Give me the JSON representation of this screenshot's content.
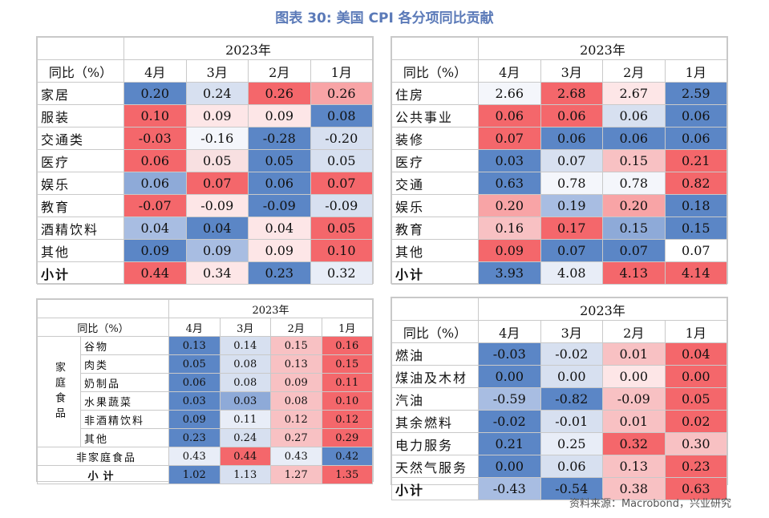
{
  "title": "图表 30: 美国 CPI 各分项同比贡献",
  "source": "资料来源：Macrobond，兴业研究",
  "chart_data": [
    {
      "type": "table",
      "year": "2023年",
      "row_header": "同比（%）",
      "months": [
        "4月",
        "3月",
        "2月",
        "1月"
      ],
      "rows": [
        {
          "label": "家居",
          "values": [
            "0.20",
            "0.24",
            "0.26",
            "0.26"
          ],
          "colors": [
            "#5b86c6",
            "#d7e0f0",
            "#f4676b",
            "#f8a4a6"
          ]
        },
        {
          "label": "服装",
          "values": [
            "0.10",
            "0.09",
            "0.09",
            "0.08"
          ],
          "colors": [
            "#f4676b",
            "#fde6e7",
            "#fde6e7",
            "#5b86c6"
          ]
        },
        {
          "label": "交通类",
          "values": [
            "-0.03",
            "-0.16",
            "-0.28",
            "-0.20"
          ],
          "colors": [
            "#f4676b",
            "#f4f6fb",
            "#5b86c6",
            "#d7e0f0"
          ]
        },
        {
          "label": "医疗",
          "values": [
            "0.06",
            "0.05",
            "0.05",
            "0.05"
          ],
          "colors": [
            "#f4676b",
            "#f8e0e1",
            "#5b86c6",
            "#d7e0f0"
          ]
        },
        {
          "label": "娱乐",
          "values": [
            "0.06",
            "0.07",
            "0.06",
            "0.07"
          ],
          "colors": [
            "#8eaad8",
            "#f4676b",
            "#5b86c6",
            "#f4676b"
          ]
        },
        {
          "label": "教育",
          "values": [
            "-0.07",
            "-0.09",
            "-0.09",
            "-0.09"
          ],
          "colors": [
            "#f4676b",
            "#fde6e7",
            "#5b86c6",
            "#d7e0f0"
          ]
        },
        {
          "label": "酒精饮料",
          "values": [
            "0.04",
            "0.04",
            "0.04",
            "0.05"
          ],
          "colors": [
            "#a8bde2",
            "#5b86c6",
            "#fde6e7",
            "#f4676b"
          ]
        },
        {
          "label": "其他",
          "values": [
            "0.09",
            "0.09",
            "0.09",
            "0.10"
          ],
          "colors": [
            "#5b86c6",
            "#a8bde2",
            "#fde6e7",
            "#f4676b"
          ]
        },
        {
          "label": "小计",
          "bold": true,
          "values": [
            "0.44",
            "0.34",
            "0.23",
            "0.32"
          ],
          "colors": [
            "#f4676b",
            "#fde6e7",
            "#5b86c6",
            "#e8edf7"
          ]
        }
      ]
    },
    {
      "type": "table",
      "year": "2023年",
      "row_header": "同比（%）",
      "months": [
        "4月",
        "3月",
        "2月",
        "1月"
      ],
      "rows": [
        {
          "label": "住房",
          "values": [
            "2.66",
            "2.68",
            "2.67",
            "2.59"
          ],
          "colors": [
            "#f4f6fb",
            "#f4676b",
            "#fde6e7",
            "#5b86c6"
          ]
        },
        {
          "label": "公共事业",
          "values": [
            "0.06",
            "0.06",
            "0.06",
            "0.06"
          ],
          "colors": [
            "#f4676b",
            "#f4676b",
            "#d7e0f0",
            "#5b86c6"
          ]
        },
        {
          "label": "装修",
          "values": [
            "0.07",
            "0.06",
            "0.06",
            "0.06"
          ],
          "colors": [
            "#f4676b",
            "#5b86c6",
            "#5b86c6",
            "#5b86c6"
          ]
        },
        {
          "label": "医疗",
          "values": [
            "0.03",
            "0.07",
            "0.15",
            "0.21"
          ],
          "colors": [
            "#5b86c6",
            "#d7e0f0",
            "#f8c1c3",
            "#f4676b"
          ]
        },
        {
          "label": "交通",
          "values": [
            "0.63",
            "0.78",
            "0.78",
            "0.82"
          ],
          "colors": [
            "#5b86c6",
            "#f4f6fb",
            "#f4f6fb",
            "#f4676b"
          ]
        },
        {
          "label": "娱乐",
          "values": [
            "0.20",
            "0.19",
            "0.20",
            "0.18"
          ],
          "colors": [
            "#f8a4a6",
            "#a8bde2",
            "#f8a4a6",
            "#5b86c6"
          ]
        },
        {
          "label": "教育",
          "values": [
            "0.16",
            "0.17",
            "0.15",
            "0.15"
          ],
          "colors": [
            "#f8c1c3",
            "#f4676b",
            "#8eaad8",
            "#5b86c6"
          ]
        },
        {
          "label": "其他",
          "values": [
            "0.09",
            "0.07",
            "0.07",
            "0.07"
          ],
          "colors": [
            "#f4676b",
            "#5b86c6",
            "#5b86c6",
            "#ffffff"
          ]
        },
        {
          "label": "小计",
          "bold": true,
          "values": [
            "3.93",
            "4.08",
            "4.13",
            "4.14"
          ],
          "colors": [
            "#5b86c6",
            "#e8edf7",
            "#f4676b",
            "#f4676b"
          ]
        }
      ]
    },
    {
      "type": "table",
      "year": "2023年",
      "row_header": "同比（%）",
      "group_label": "家庭食品",
      "months": [
        "4月",
        "3月",
        "2月",
        "1月"
      ],
      "rows": [
        {
          "label": "谷物",
          "group": true,
          "values": [
            "0.13",
            "0.14",
            "0.15",
            "0.16"
          ],
          "colors": [
            "#5b86c6",
            "#d7e0f0",
            "#f8c1c3",
            "#f4676b"
          ]
        },
        {
          "label": "肉类",
          "group": true,
          "values": [
            "0.05",
            "0.08",
            "0.13",
            "0.15"
          ],
          "colors": [
            "#5b86c6",
            "#d7e0f0",
            "#f8c1c3",
            "#f4676b"
          ]
        },
        {
          "label": "奶制品",
          "group": true,
          "values": [
            "0.06",
            "0.08",
            "0.09",
            "0.11"
          ],
          "colors": [
            "#5b86c6",
            "#d7e0f0",
            "#f8c1c3",
            "#f4676b"
          ]
        },
        {
          "label": "水果蔬菜",
          "group": true,
          "values": [
            "0.03",
            "0.03",
            "0.08",
            "0.10"
          ],
          "colors": [
            "#5b86c6",
            "#8eaad8",
            "#f8c1c3",
            "#f4676b"
          ]
        },
        {
          "label": "非酒精饮料",
          "group": true,
          "values": [
            "0.09",
            "0.11",
            "0.12",
            "0.12"
          ],
          "colors": [
            "#5b86c6",
            "#e8edf7",
            "#f8c1c3",
            "#f4676b"
          ]
        },
        {
          "label": "其他",
          "group": true,
          "values": [
            "0.23",
            "0.24",
            "0.27",
            "0.29"
          ],
          "colors": [
            "#5b86c6",
            "#d7e0f0",
            "#f8c1c3",
            "#f4676b"
          ]
        },
        {
          "label": "非家庭食品",
          "values": [
            "0.43",
            "0.44",
            "0.43",
            "0.42"
          ],
          "colors": [
            "#e8edf7",
            "#f4676b",
            "#e8edf7",
            "#5b86c6"
          ]
        },
        {
          "label": "小计",
          "bold": true,
          "values": [
            "1.02",
            "1.13",
            "1.27",
            "1.35"
          ],
          "colors": [
            "#5b86c6",
            "#d7e0f0",
            "#f8c1c3",
            "#f4676b"
          ]
        }
      ]
    },
    {
      "type": "table",
      "year": "2023年",
      "row_header": "同比（%）",
      "months": [
        "4月",
        "3月",
        "2月",
        "1月"
      ],
      "rows": [
        {
          "label": "燃油",
          "values": [
            "-0.03",
            "-0.02",
            "0.01",
            "0.04"
          ],
          "colors": [
            "#5b86c6",
            "#d7e0f0",
            "#f8c1c3",
            "#f4676b"
          ]
        },
        {
          "label": "煤油及木材",
          "values": [
            "0.00",
            "0.00",
            "0.00",
            "0.00"
          ],
          "colors": [
            "#5b86c6",
            "#d7e0f0",
            "#fde6e7",
            "#f4676b"
          ]
        },
        {
          "label": "汽油",
          "values": [
            "-0.59",
            "-0.82",
            "-0.09",
            "0.05"
          ],
          "colors": [
            "#a8bde2",
            "#5b86c6",
            "#f8c1c3",
            "#f4676b"
          ]
        },
        {
          "label": "其余燃料",
          "values": [
            "-0.02",
            "-0.01",
            "0.01",
            "0.02"
          ],
          "colors": [
            "#5b86c6",
            "#d7e0f0",
            "#f8c1c3",
            "#f4676b"
          ]
        },
        {
          "label": "电力服务",
          "values": [
            "0.21",
            "0.25",
            "0.32",
            "0.30"
          ],
          "colors": [
            "#5b86c6",
            "#e8edf7",
            "#f4676b",
            "#f8c1c3"
          ]
        },
        {
          "label": "天然气服务",
          "values": [
            "0.00",
            "0.06",
            "0.13",
            "0.23"
          ],
          "colors": [
            "#5b86c6",
            "#d7e0f0",
            "#f8c1c3",
            "#f4676b"
          ]
        },
        {
          "label": "小计",
          "bold": true,
          "values": [
            "-0.43",
            "-0.54",
            "0.38",
            "0.63"
          ],
          "colors": [
            "#a8bde2",
            "#5b86c6",
            "#f8c1c3",
            "#f4676b"
          ]
        }
      ]
    }
  ]
}
